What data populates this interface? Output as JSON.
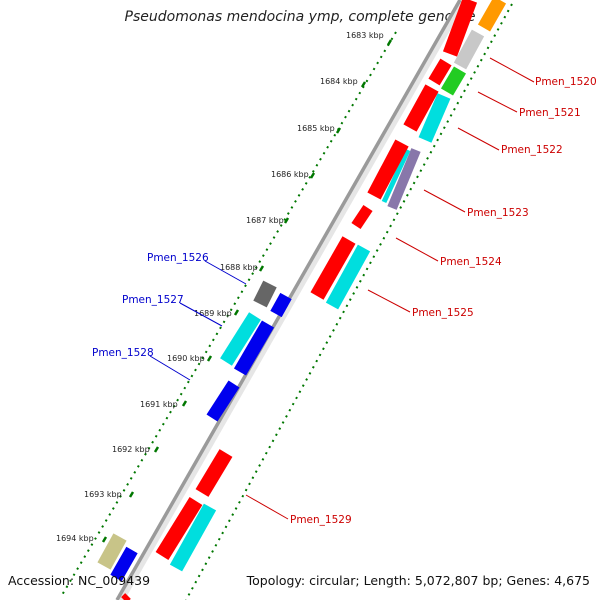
{
  "title": "Pseudomonas mendocina ymp, complete genome",
  "accession": "Accession: NC_009439",
  "topology": "Topology: circular; Length: 5,072,807 bp; Genes: 4,675",
  "ticks": [
    "1683 kbp",
    "1684 kbp",
    "1685 kbp",
    "1686 kbp",
    "1687 kbp",
    "1688 kbp",
    "1689 kbp",
    "1690 kbp",
    "1691 kbp",
    "1692 kbp",
    "1693 kbp",
    "1694 kbp"
  ],
  "labels_right": [
    "Pmen_1520",
    "Pmen_1521",
    "Pmen_1522",
    "Pmen_1523",
    "Pmen_1524",
    "Pmen_1525",
    "Pmen_1529"
  ],
  "labels_left": [
    "Pmen_1526",
    "Pmen_1527",
    "Pmen_1528"
  ],
  "colors": {
    "right_label": "#cc0000",
    "left_label": "#0000cc",
    "gene_red": "#ff0000",
    "gene_cyan": "#00dede",
    "gene_blue": "#0000ee",
    "gene_gray": "#c8c8c8",
    "gene_darkgray": "#666666",
    "gene_green": "#22cc22",
    "gene_orange": "#ff9900",
    "gene_khaki": "#c8c488",
    "gene_purple": "#8877aa",
    "tick_green": "#007700",
    "backbone": "#9a9a9a"
  }
}
